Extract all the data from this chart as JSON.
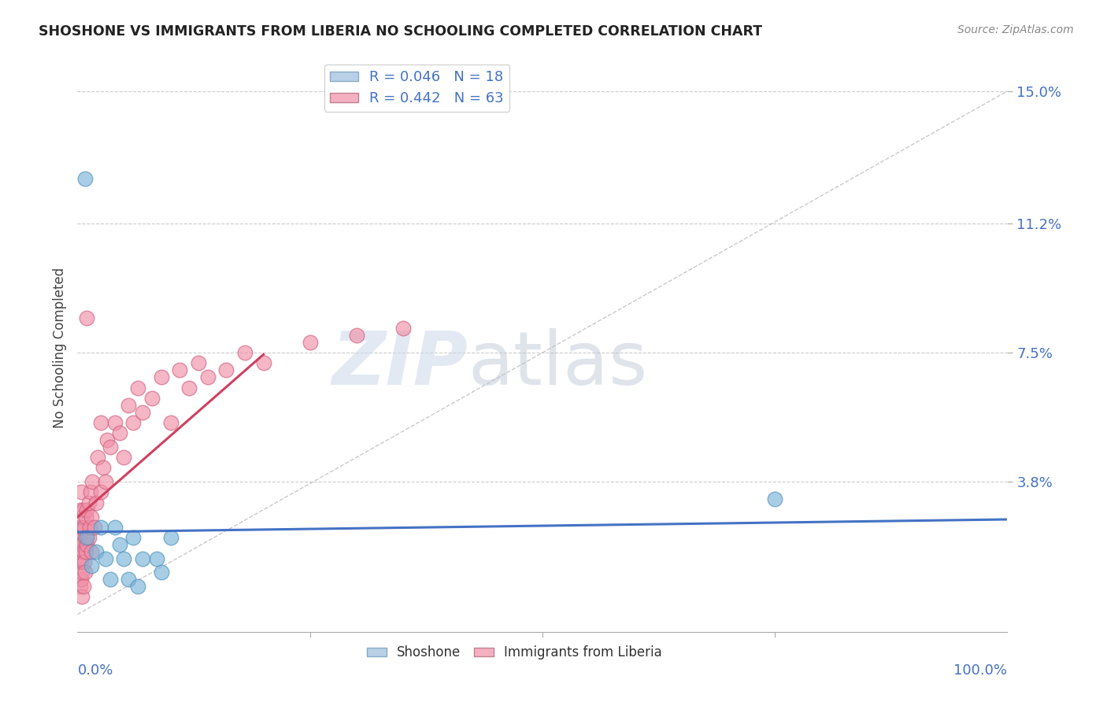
{
  "title": "SHOSHONE VS IMMIGRANTS FROM LIBERIA NO SCHOOLING COMPLETED CORRELATION CHART",
  "source": "Source: ZipAtlas.com",
  "ylabel": "No Schooling Completed",
  "ytick_labels": [
    "3.8%",
    "7.5%",
    "11.2%",
    "15.0%"
  ],
  "ytick_values": [
    0.038,
    0.075,
    0.112,
    0.15
  ],
  "xlim": [
    0.0,
    1.0
  ],
  "ylim": [
    -0.005,
    0.158
  ],
  "legend_R1": "R = 0.046",
  "legend_N1": "N = 18",
  "legend_R2": "R = 0.442",
  "legend_N2": "N = 63",
  "shoshone_color": "#7ab4d8",
  "shoshone_edge": "#5090bb",
  "liberia_color": "#f090a8",
  "liberia_edge": "#d06080",
  "title_color": "#222222",
  "axis_label_color": "#4472c4",
  "background_color": "#ffffff",
  "grid_color": "#cccccc",
  "diagonal_line_color": "#c0c0c0",
  "shoshone_trend_color": "#4472c4",
  "liberia_trend_color": "#d04060",
  "legend_blue_face": "#b8d0e8",
  "legend_pink_face": "#f4b0c0",
  "shoshone_points_x": [
    0.008,
    0.01,
    0.015,
    0.02,
    0.025,
    0.03,
    0.035,
    0.04,
    0.045,
    0.05,
    0.055,
    0.06,
    0.065,
    0.07,
    0.085,
    0.09,
    0.1,
    0.75
  ],
  "shoshone_points_y": [
    0.125,
    0.022,
    0.014,
    0.018,
    0.025,
    0.016,
    0.01,
    0.025,
    0.02,
    0.016,
    0.01,
    0.022,
    0.008,
    0.016,
    0.016,
    0.012,
    0.022,
    0.033
  ],
  "liberia_points_x": [
    0.002,
    0.002,
    0.002,
    0.003,
    0.003,
    0.003,
    0.003,
    0.004,
    0.004,
    0.004,
    0.004,
    0.005,
    0.005,
    0.005,
    0.005,
    0.006,
    0.006,
    0.006,
    0.007,
    0.007,
    0.008,
    0.008,
    0.009,
    0.009,
    0.01,
    0.01,
    0.01,
    0.012,
    0.012,
    0.013,
    0.014,
    0.015,
    0.015,
    0.016,
    0.018,
    0.02,
    0.022,
    0.025,
    0.025,
    0.028,
    0.03,
    0.032,
    0.035,
    0.04,
    0.045,
    0.05,
    0.055,
    0.06,
    0.065,
    0.07,
    0.08,
    0.09,
    0.1,
    0.11,
    0.12,
    0.13,
    0.14,
    0.16,
    0.18,
    0.2,
    0.25,
    0.3,
    0.35
  ],
  "liberia_points_y": [
    0.015,
    0.02,
    0.025,
    0.008,
    0.018,
    0.022,
    0.03,
    0.01,
    0.015,
    0.025,
    0.035,
    0.005,
    0.012,
    0.02,
    0.028,
    0.008,
    0.018,
    0.03,
    0.015,
    0.025,
    0.012,
    0.022,
    0.018,
    0.028,
    0.085,
    0.02,
    0.03,
    0.022,
    0.032,
    0.025,
    0.035,
    0.018,
    0.028,
    0.038,
    0.025,
    0.032,
    0.045,
    0.035,
    0.055,
    0.042,
    0.038,
    0.05,
    0.048,
    0.055,
    0.052,
    0.045,
    0.06,
    0.055,
    0.065,
    0.058,
    0.062,
    0.068,
    0.055,
    0.07,
    0.065,
    0.072,
    0.068,
    0.07,
    0.075,
    0.072,
    0.078,
    0.08,
    0.082
  ]
}
